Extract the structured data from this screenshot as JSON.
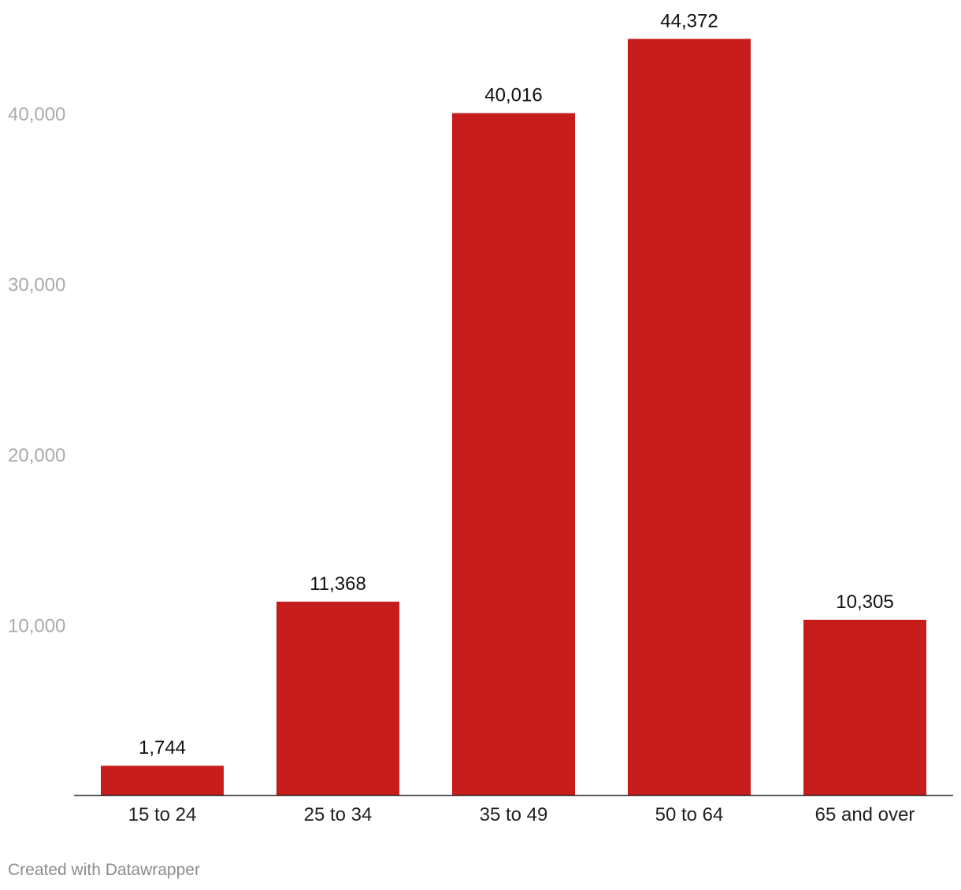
{
  "chart_data": {
    "type": "bar",
    "categories": [
      "15 to 24",
      "25 to 34",
      "35 to 49",
      "50 to 64",
      "65 and over"
    ],
    "values": [
      1744,
      11368,
      40016,
      44372,
      10305
    ],
    "value_labels": [
      "1,744",
      "11,368",
      "40,016",
      "44,372",
      "10,305"
    ],
    "yticks": [
      10000,
      20000,
      30000,
      40000
    ],
    "ytick_labels": [
      "10,000",
      "20,000",
      "30,000",
      "40,000"
    ],
    "ylim": [
      0,
      46000
    ],
    "grid": false,
    "bar_color": "#c61c1c",
    "title": "",
    "xlabel": "",
    "ylabel": ""
  },
  "footer": {
    "credit": "Created with Datawrapper"
  }
}
